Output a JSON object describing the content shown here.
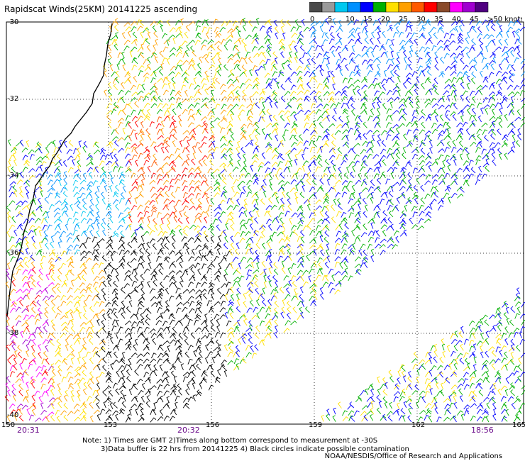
{
  "title": "Rapidscat Winds(25KM) 20141225 ascending",
  "legend": {
    "colors": [
      "#4a4a4a",
      "#9a9a9a",
      "#00c8f0",
      "#0090ff",
      "#0000ff",
      "#00b000",
      "#ffe000",
      "#ffa000",
      "#ff5a00",
      "#ff0000",
      "#8a4a2a",
      "#ff00ff",
      "#a000d0",
      "#500080"
    ],
    "labels": [
      "0",
      "5",
      "10",
      "15",
      "20",
      "25",
      "30",
      "35",
      "40",
      "45",
      ">50 knots"
    ]
  },
  "axes": {
    "lat_labels": [
      "-30",
      "-32",
      "-34",
      "-36",
      "-38",
      "-40"
    ],
    "lon_labels": [
      "150",
      "153",
      "156",
      "159",
      "162",
      "165"
    ]
  },
  "times": [
    "20:31",
    "20:32",
    "18:56"
  ],
  "notes": [
    "Note: 1) Times are GMT 2)Times along bottom correspond to measurement at -30S",
    "3)Data buffer is 22 hrs from 20141225 4) Black circles indicate possible contamination"
  ],
  "credit": "NOAA/NESDIS/Office of Research and Applications"
}
